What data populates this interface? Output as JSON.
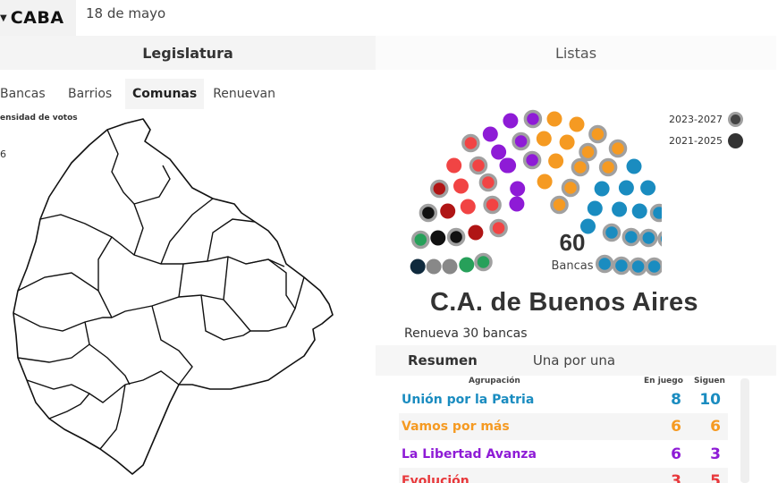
{
  "header": {
    "region_label": "CABA",
    "date": "18 de mayo"
  },
  "main_tabs": {
    "legislatura": "Legislatura",
    "listas": "Listas"
  },
  "sub_tabs": {
    "bancas": "Bancas",
    "barrios": "Barrios",
    "comunas": "Comunas",
    "renuevan": "Renuevan"
  },
  "map_legend": {
    "title": "ensidad de votos",
    "value": "6"
  },
  "hemicycle": {
    "total": "60",
    "label": "Bancas",
    "periods": [
      {
        "label": "2023-2027",
        "color": "#555555",
        "ring": true
      },
      {
        "label": "2021-2025",
        "color": "#333333",
        "ring": false
      }
    ]
  },
  "region": {
    "title": "C.A. de Buenos Aires",
    "renueva": "Renueva 30 bancas"
  },
  "results_tabs": {
    "resumen": "Resumen",
    "una_por_una": "Una por una"
  },
  "table": {
    "headers": {
      "agrupacion": "Agrupación",
      "en_juego": "En juego",
      "siguen": "Siguen"
    },
    "rows": [
      {
        "name": "Unión por la Patria",
        "en_juego": "8",
        "siguen": "10",
        "color": "#1a8cc0"
      },
      {
        "name": "Vamos por más",
        "en_juego": "6",
        "siguen": "6",
        "color": "#f59a22"
      },
      {
        "name": "La Libertad Avanza",
        "en_juego": "6",
        "siguen": "3",
        "color": "#8e1bd6"
      },
      {
        "name": "Evolución",
        "en_juego": "3",
        "siguen": "5",
        "color": "#e8383b"
      }
    ]
  },
  "colors": {
    "upp": "#1a8cc0",
    "vamos": "#f59a22",
    "lla": "#8e1bd6",
    "evolucion": "#f14444",
    "darkred": "#b01515",
    "black": "#111111",
    "green": "#27a05a",
    "gray": "#888888",
    "navy": "#0f2a3d",
    "ring": "#a0a0a0"
  }
}
